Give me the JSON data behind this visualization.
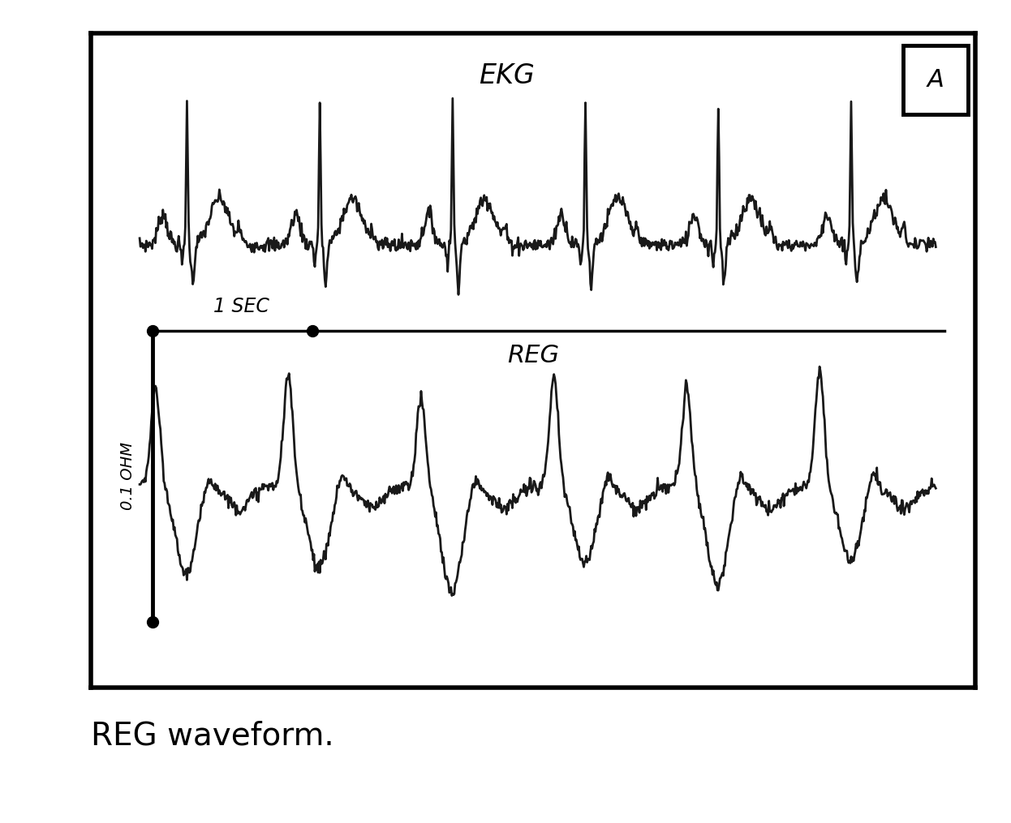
{
  "title": "EKG",
  "label_reg": "REG",
  "label_1sec": "1 SEC",
  "label_ohm": "0.1 OHM",
  "label_A": "A",
  "caption": "REG waveform.",
  "bg_color": "#ffffff",
  "line_color": "#000000",
  "text_color": "#000000",
  "title_fontsize": 24,
  "reg_label_fontsize": 22,
  "caption_fontsize": 28,
  "sec_fontsize": 17,
  "ohm_fontsize": 14
}
